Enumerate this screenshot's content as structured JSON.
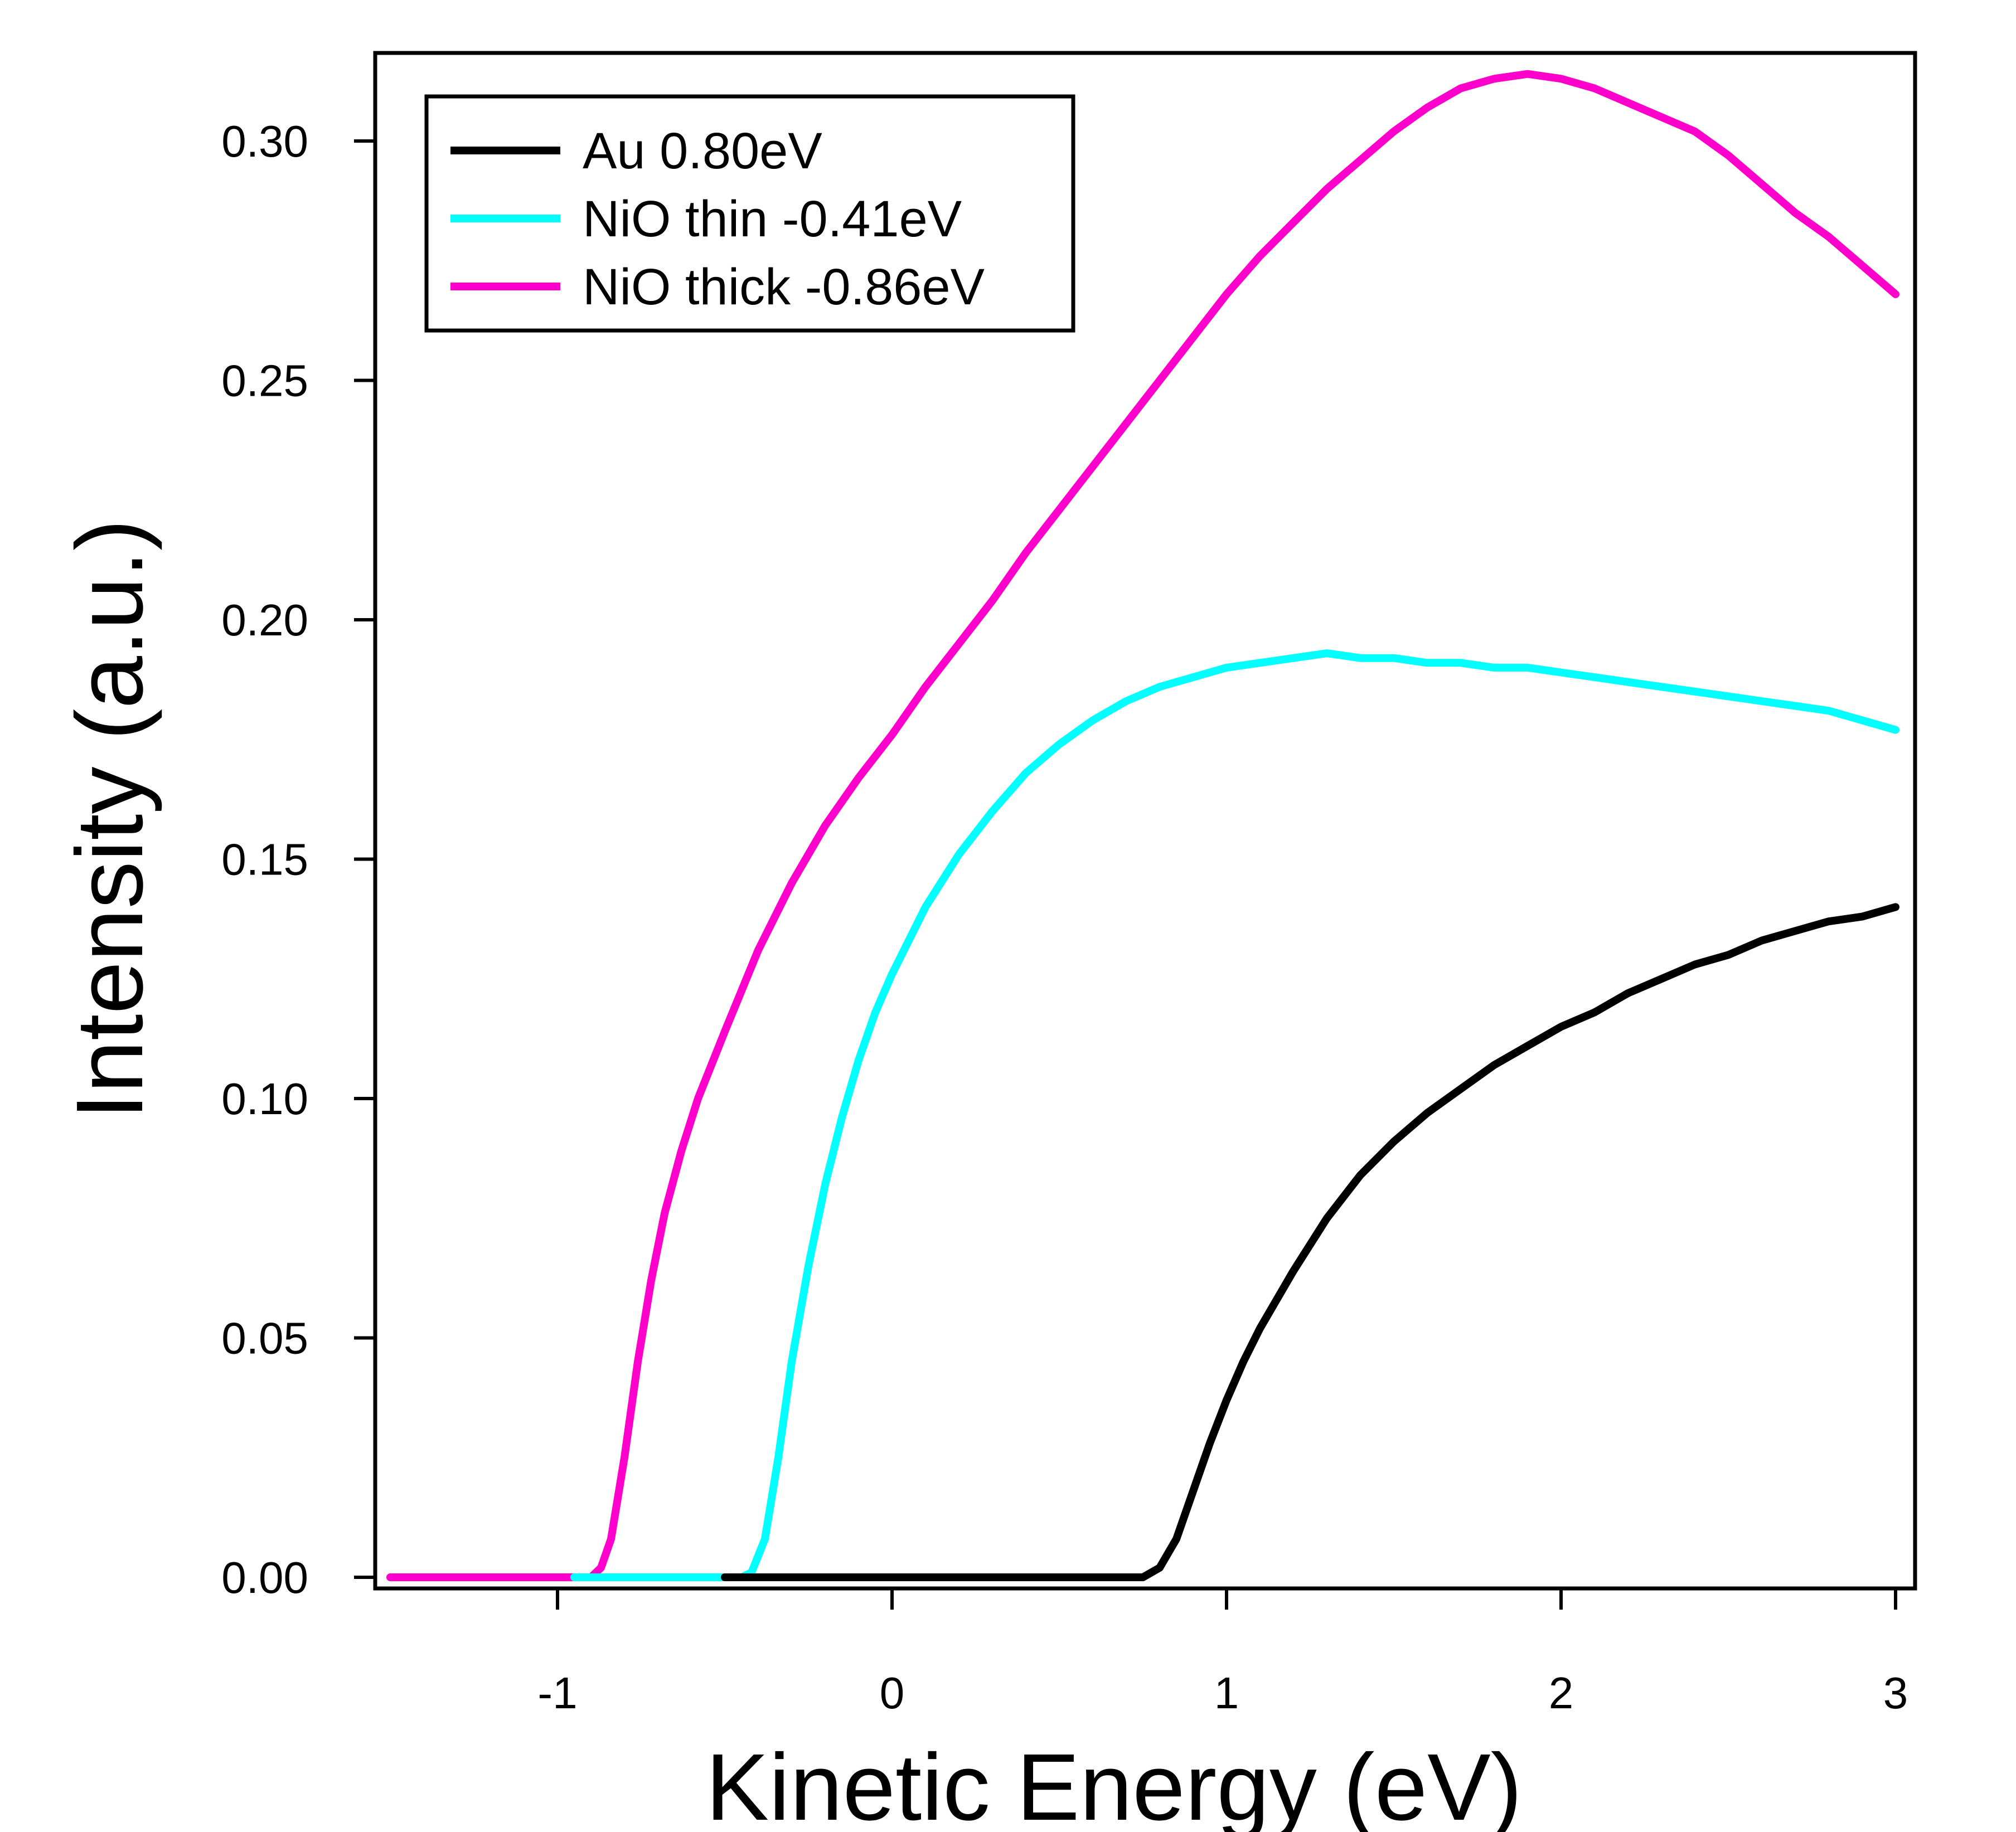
{
  "chart_data": {
    "type": "line",
    "title": "",
    "xlabel": "Kinetic Energy (eV)",
    "ylabel": "Intensity (a.u.)",
    "xlim": [
      -1.55,
      3.05
    ],
    "ylim": [
      -0.003,
      0.317
    ],
    "x_ticks": [
      -1,
      0,
      1,
      2,
      3
    ],
    "x_tick_labels": [
      "-1",
      "0",
      "1",
      "2",
      "3"
    ],
    "y_ticks": [
      0.0,
      0.05,
      0.1,
      0.15,
      0.2,
      0.25,
      0.3
    ],
    "y_tick_labels": [
      "0.00",
      "0.05",
      "0.10",
      "0.15",
      "0.20",
      "0.25",
      "0.30"
    ],
    "grid": false,
    "legend_position": "top-left",
    "series": [
      {
        "name": "Au 0.80eV",
        "color": "#000000",
        "points": [
          [
            -0.5,
            0
          ],
          [
            0.75,
            0
          ],
          [
            0.8,
            0.002
          ],
          [
            0.85,
            0.008
          ],
          [
            0.9,
            0.018
          ],
          [
            0.95,
            0.028
          ],
          [
            1.0,
            0.037
          ],
          [
            1.05,
            0.045
          ],
          [
            1.1,
            0.052
          ],
          [
            1.2,
            0.064
          ],
          [
            1.3,
            0.075
          ],
          [
            1.4,
            0.084
          ],
          [
            1.5,
            0.091
          ],
          [
            1.6,
            0.097
          ],
          [
            1.7,
            0.102
          ],
          [
            1.8,
            0.107
          ],
          [
            1.9,
            0.111
          ],
          [
            2.0,
            0.115
          ],
          [
            2.1,
            0.118
          ],
          [
            2.2,
            0.122
          ],
          [
            2.3,
            0.125
          ],
          [
            2.4,
            0.128
          ],
          [
            2.5,
            0.13
          ],
          [
            2.6,
            0.133
          ],
          [
            2.7,
            0.135
          ],
          [
            2.8,
            0.137
          ],
          [
            2.9,
            0.138
          ],
          [
            3.0,
            0.14
          ]
        ]
      },
      {
        "name": "NiO thin -0.41eV",
        "color": "#00FFFF",
        "points": [
          [
            -0.95,
            0
          ],
          [
            -0.45,
            0
          ],
          [
            -0.42,
            0.001
          ],
          [
            -0.38,
            0.008
          ],
          [
            -0.34,
            0.025
          ],
          [
            -0.3,
            0.045
          ],
          [
            -0.25,
            0.065
          ],
          [
            -0.2,
            0.082
          ],
          [
            -0.15,
            0.096
          ],
          [
            -0.1,
            0.108
          ],
          [
            -0.05,
            0.118
          ],
          [
            0.0,
            0.126
          ],
          [
            0.1,
            0.14
          ],
          [
            0.2,
            0.151
          ],
          [
            0.3,
            0.16
          ],
          [
            0.4,
            0.168
          ],
          [
            0.5,
            0.174
          ],
          [
            0.6,
            0.179
          ],
          [
            0.7,
            0.183
          ],
          [
            0.8,
            0.186
          ],
          [
            0.9,
            0.188
          ],
          [
            1.0,
            0.19
          ],
          [
            1.1,
            0.191
          ],
          [
            1.2,
            0.192
          ],
          [
            1.3,
            0.193
          ],
          [
            1.4,
            0.192
          ],
          [
            1.5,
            0.192
          ],
          [
            1.6,
            0.191
          ],
          [
            1.7,
            0.191
          ],
          [
            1.8,
            0.19
          ],
          [
            1.9,
            0.19
          ],
          [
            2.0,
            0.189
          ],
          [
            2.1,
            0.188
          ],
          [
            2.2,
            0.187
          ],
          [
            2.3,
            0.186
          ],
          [
            2.4,
            0.185
          ],
          [
            2.5,
            0.184
          ],
          [
            2.6,
            0.183
          ],
          [
            2.7,
            0.182
          ],
          [
            2.8,
            0.181
          ],
          [
            2.9,
            0.179
          ],
          [
            3.0,
            0.177
          ]
        ]
      },
      {
        "name": "NiO thick -0.86eV",
        "color": "#FF00CC",
        "points": [
          [
            -1.5,
            0
          ],
          [
            -0.9,
            0
          ],
          [
            -0.87,
            0.002
          ],
          [
            -0.84,
            0.008
          ],
          [
            -0.8,
            0.025
          ],
          [
            -0.76,
            0.045
          ],
          [
            -0.72,
            0.062
          ],
          [
            -0.68,
            0.076
          ],
          [
            -0.63,
            0.089
          ],
          [
            -0.58,
            0.1
          ],
          [
            -0.5,
            0.114
          ],
          [
            -0.4,
            0.131
          ],
          [
            -0.3,
            0.145
          ],
          [
            -0.2,
            0.157
          ],
          [
            -0.1,
            0.167
          ],
          [
            0.0,
            0.176
          ],
          [
            0.1,
            0.186
          ],
          [
            0.2,
            0.195
          ],
          [
            0.3,
            0.204
          ],
          [
            0.4,
            0.214
          ],
          [
            0.5,
            0.223
          ],
          [
            0.6,
            0.232
          ],
          [
            0.7,
            0.241
          ],
          [
            0.8,
            0.25
          ],
          [
            0.9,
            0.259
          ],
          [
            1.0,
            0.268
          ],
          [
            1.1,
            0.276
          ],
          [
            1.2,
            0.283
          ],
          [
            1.3,
            0.29
          ],
          [
            1.4,
            0.296
          ],
          [
            1.5,
            0.302
          ],
          [
            1.6,
            0.307
          ],
          [
            1.7,
            0.311
          ],
          [
            1.8,
            0.313
          ],
          [
            1.9,
            0.314
          ],
          [
            2.0,
            0.313
          ],
          [
            2.1,
            0.311
          ],
          [
            2.2,
            0.308
          ],
          [
            2.3,
            0.305
          ],
          [
            2.4,
            0.302
          ],
          [
            2.5,
            0.297
          ],
          [
            2.6,
            0.291
          ],
          [
            2.7,
            0.285
          ],
          [
            2.8,
            0.28
          ],
          [
            2.9,
            0.274
          ],
          [
            3.0,
            0.268
          ]
        ]
      }
    ]
  }
}
